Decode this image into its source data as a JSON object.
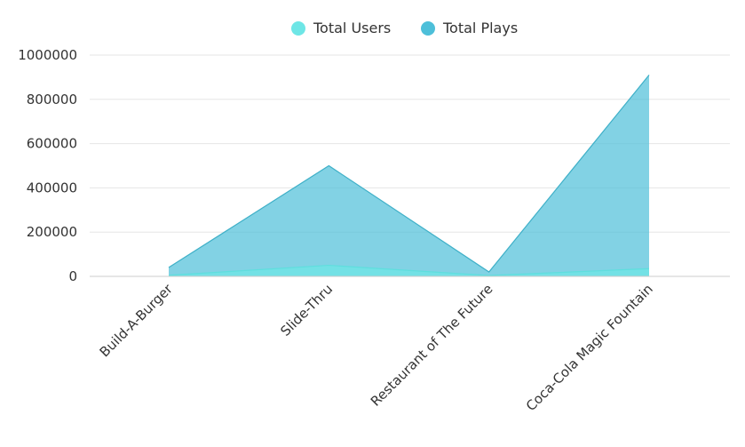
{
  "chart_data": {
    "type": "area",
    "categories": [
      "Build-A-Burger",
      "Slide-Thru",
      "Restaurant of The Future",
      "Coca-Cola Magic Fountain"
    ],
    "series": [
      {
        "name": "Total Plays",
        "values": [
          40000,
          500000,
          20000,
          910000
        ],
        "color": "#4dbfd9"
      },
      {
        "name": "Total Users",
        "values": [
          5000,
          50000,
          4000,
          35000
        ],
        "color": "#6ee6e6"
      }
    ],
    "ylim": [
      0,
      1000000
    ],
    "yticks": [
      "0",
      "200000",
      "400000",
      "600000",
      "800000",
      "1000000"
    ],
    "ytick_values": [
      0,
      200000,
      400000,
      600000,
      800000,
      1000000
    ],
    "legend": [
      {
        "label": "Total Users",
        "color": "#6ee6e6"
      },
      {
        "label": "Total Plays",
        "color": "#4dbfd9"
      }
    ],
    "legend_position": "top-center",
    "grid": true
  }
}
